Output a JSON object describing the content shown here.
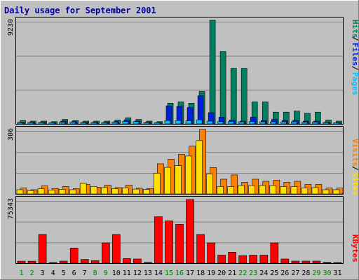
{
  "colors": {
    "background": "#C0C0C0",
    "plot": "#C0C0C0",
    "grid": "#808080",
    "title": "#0000A0",
    "pages": "#00C0FF",
    "files": "#0020E0",
    "hits": "#008060",
    "sites": "#FFE000",
    "visits": "#FF8000",
    "kbytes": "#FF0000",
    "weekday": "#000000",
    "weekend": "#008000"
  },
  "chart_data": {
    "title": "Daily usage for September 2001",
    "type": "bar",
    "categories": [
      "1",
      "2",
      "3",
      "4",
      "5",
      "6",
      "7",
      "8",
      "9",
      "10",
      "11",
      "12",
      "13",
      "14",
      "15",
      "16",
      "17",
      "18",
      "19",
      "20",
      "21",
      "22",
      "23",
      "24",
      "25",
      "26",
      "27",
      "28",
      "29",
      "30",
      "31"
    ],
    "weekend_days": [
      "1",
      "2",
      "8",
      "9",
      "15",
      "16",
      "22",
      "23",
      "29",
      "30"
    ],
    "panels": [
      {
        "max_label": "9230",
        "ylim": [
          0,
          9230
        ],
        "grid": true,
        "legend": {
          "position": "right-vertical",
          "items": [
            "Pages",
            "Files",
            "Hits"
          ]
        },
        "series": [
          {
            "name": "Hits",
            "values": [
              300,
              250,
              250,
              200,
              400,
              300,
              250,
              250,
              250,
              350,
              550,
              400,
              250,
              200,
              1850,
              1950,
              1850,
              2900,
              9230,
              6450,
              4950,
              4950,
              1950,
              1950,
              1050,
              1050,
              1150,
              950,
              1050,
              350,
              250
            ]
          },
          {
            "name": "Files",
            "values": [
              150,
              150,
              150,
              120,
              250,
              200,
              150,
              150,
              150,
              200,
              350,
              250,
              150,
              120,
              1600,
              1550,
              1450,
              2500,
              1000,
              600,
              350,
              250,
              600,
              300,
              400,
              300,
              300,
              250,
              250,
              150,
              120
            ]
          },
          {
            "name": "Pages",
            "values": [
              120,
              120,
              120,
              100,
              150,
              150,
              120,
              120,
              120,
              150,
              200,
              200,
              120,
              100,
              300,
              300,
              280,
              350,
              250,
              200,
              200,
              180,
              200,
              180,
              180,
              180,
              180,
              150,
              150,
              120,
              100
            ]
          }
        ]
      },
      {
        "max_label": "306",
        "ylim": [
          0,
          306
        ],
        "grid": true,
        "legend": {
          "position": "right-vertical",
          "items": [
            "Sites",
            "Visits"
          ]
        },
        "series": [
          {
            "name": "Visits",
            "values": [
              28,
              20,
              38,
              26,
              35,
              25,
              45,
              32,
              42,
              30,
              42,
              27,
              26,
              143,
              165,
              188,
              227,
              306,
              125,
              70,
              90,
              55,
              70,
              60,
              65,
              55,
              60,
              45,
              45,
              28,
              28
            ]
          },
          {
            "name": "Sites",
            "values": [
              20,
              16,
              25,
              18,
              22,
              20,
              50,
              35,
              30,
              25,
              28,
              23,
              21,
              98,
              126,
              134,
              180,
              253,
              95,
              35,
              35,
              40,
              40,
              40,
              40,
              35,
              35,
              28,
              30,
              20,
              20
            ]
          }
        ]
      },
      {
        "max_label": "75343",
        "ylim": [
          0,
          75343
        ],
        "grid": true,
        "legend": {
          "position": "right-vertical",
          "items": [
            "KBytes"
          ]
        },
        "series": [
          {
            "name": "KBytes",
            "values": [
              2400,
              2400,
              34000,
              700,
              2500,
              18000,
              4500,
              3000,
              24000,
              34000,
              5500,
              5000,
              1000,
              55000,
              50000,
              46000,
              75343,
              34000,
              24000,
              9500,
              13000,
              9000,
              9500,
              9500,
              24000,
              5000,
              2500,
              2500,
              2500,
              1200,
              700
            ]
          }
        ]
      }
    ]
  }
}
